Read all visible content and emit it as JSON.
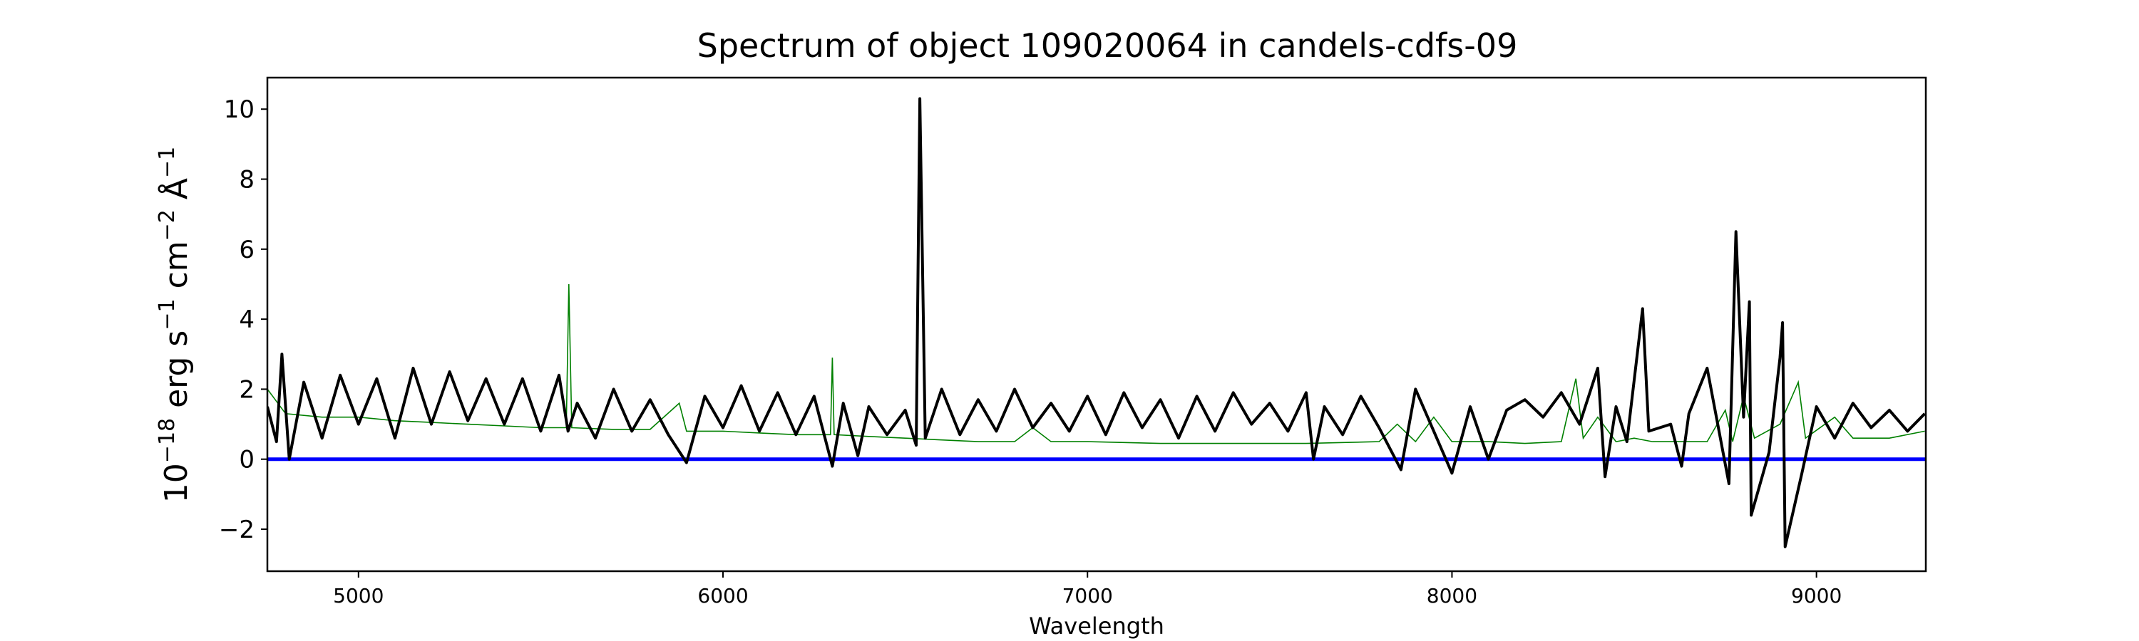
{
  "chart_data": {
    "type": "line",
    "title": "Spectrum of object 109020064 in candels-cdfs-09",
    "xlabel": "Wavelength",
    "ylabel": {
      "base": "10",
      "exp1": "−18",
      "t1": " erg s",
      "exp2": "−1",
      "t2": " cm",
      "exp3": "−2",
      "t3": " Å",
      "exp4": "−1"
    },
    "xlim": [
      4750,
      9300
    ],
    "ylim": [
      -3.2,
      10.9
    ],
    "xticks": [
      5000,
      6000,
      7000,
      8000,
      9000
    ],
    "yticks": [
      -2,
      0,
      2,
      4,
      6,
      8,
      10
    ],
    "grid": false,
    "colors": {
      "flux": "#000000",
      "error": "#008000",
      "zero": "#0000ff"
    },
    "zero_line": 0,
    "series": [
      {
        "role": "flux",
        "x": [
          4750,
          4775,
          4790,
          4810,
          4850,
          4900,
          4950,
          5000,
          5050,
          5100,
          5150,
          5200,
          5250,
          5300,
          5350,
          5400,
          5450,
          5500,
          5550,
          5575,
          5600,
          5650,
          5700,
          5750,
          5800,
          5850,
          5900,
          5950,
          6000,
          6050,
          6100,
          6150,
          6200,
          6250,
          6300,
          6330,
          6370,
          6400,
          6450,
          6500,
          6530,
          6540,
          6555,
          6600,
          6650,
          6700,
          6750,
          6800,
          6850,
          6900,
          6950,
          7000,
          7050,
          7100,
          7150,
          7200,
          7250,
          7300,
          7350,
          7400,
          7450,
          7500,
          7550,
          7600,
          7620,
          7650,
          7700,
          7750,
          7800,
          7860,
          7900,
          7950,
          8000,
          8050,
          8100,
          8150,
          8200,
          8250,
          8300,
          8350,
          8400,
          8420,
          8450,
          8480,
          8523,
          8540,
          8600,
          8630,
          8650,
          8700,
          8760,
          8779,
          8800,
          8816,
          8821,
          8870,
          8900,
          8907,
          8914,
          8960,
          9000,
          9050,
          9100,
          9150,
          9200,
          9250,
          9297
        ],
        "y": [
          1.5,
          0.5,
          3.0,
          0.0,
          2.2,
          0.6,
          2.4,
          1.0,
          2.3,
          0.6,
          2.6,
          1.0,
          2.5,
          1.1,
          2.3,
          1.0,
          2.3,
          0.8,
          2.4,
          0.8,
          1.6,
          0.6,
          2.0,
          0.8,
          1.7,
          0.7,
          -0.1,
          1.8,
          0.9,
          2.1,
          0.8,
          1.9,
          0.7,
          1.8,
          -0.2,
          1.6,
          0.1,
          1.5,
          0.7,
          1.4,
          0.4,
          10.3,
          0.6,
          2.0,
          0.7,
          1.7,
          0.8,
          2.0,
          0.9,
          1.6,
          0.8,
          1.8,
          0.7,
          1.9,
          0.9,
          1.7,
          0.6,
          1.8,
          0.8,
          1.9,
          1.0,
          1.6,
          0.8,
          1.9,
          0.0,
          1.5,
          0.7,
          1.8,
          0.9,
          -0.3,
          2.0,
          0.8,
          -0.4,
          1.5,
          0.0,
          1.4,
          1.7,
          1.2,
          1.9,
          1.0,
          2.6,
          -0.5,
          1.5,
          0.5,
          4.3,
          0.8,
          1.0,
          -0.2,
          1.3,
          2.6,
          -0.7,
          6.5,
          1.2,
          4.5,
          -1.6,
          0.2,
          2.9,
          3.9,
          -2.5,
          -0.4,
          1.5,
          0.6,
          1.6,
          0.9,
          1.4,
          0.8,
          1.3
        ]
      },
      {
        "role": "error",
        "x": [
          4750,
          4800,
          4900,
          5000,
          5100,
          5200,
          5300,
          5400,
          5500,
          5570,
          5577,
          5585,
          5700,
          5800,
          5880,
          5900,
          6000,
          6100,
          6200,
          6295,
          6300,
          6305,
          6400,
          6500,
          6600,
          6700,
          6800,
          6850,
          6900,
          7000,
          7200,
          7400,
          7600,
          7800,
          7850,
          7900,
          7950,
          8000,
          8100,
          8200,
          8300,
          8340,
          8360,
          8400,
          8450,
          8500,
          8550,
          8700,
          8750,
          8770,
          8800,
          8830,
          8900,
          8950,
          8970,
          9050,
          9100,
          9200,
          9297
        ],
        "y": [
          2.0,
          1.3,
          1.2,
          1.2,
          1.1,
          1.05,
          1.0,
          0.95,
          0.9,
          0.9,
          5.0,
          0.9,
          0.85,
          0.85,
          1.6,
          0.8,
          0.8,
          0.75,
          0.7,
          0.7,
          2.9,
          0.7,
          0.65,
          0.6,
          0.55,
          0.5,
          0.5,
          0.9,
          0.5,
          0.5,
          0.45,
          0.45,
          0.45,
          0.5,
          1.0,
          0.5,
          1.2,
          0.5,
          0.5,
          0.45,
          0.5,
          2.3,
          0.6,
          1.2,
          0.5,
          0.6,
          0.5,
          0.5,
          1.4,
          0.5,
          1.8,
          0.6,
          1.0,
          2.2,
          0.6,
          1.2,
          0.6,
          0.6,
          0.8
        ]
      }
    ]
  }
}
